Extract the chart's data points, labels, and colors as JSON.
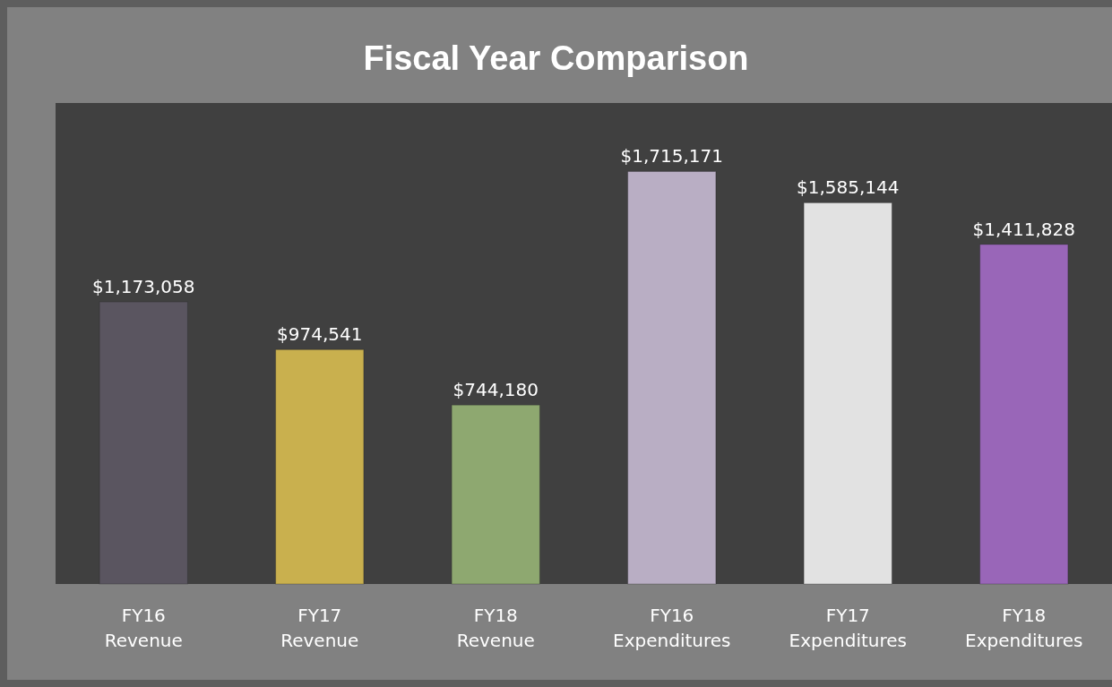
{
  "chart_data": {
    "type": "bar",
    "title": "Fiscal Year Comparison",
    "categories": [
      "FY16 Revenue",
      "FY17 Revenue",
      "FY18 Revenue",
      "FY16 Expenditures",
      "FY17 Expenditures",
      "FY18 Expenditures"
    ],
    "values": [
      1173058,
      974541,
      744180,
      1715171,
      1585144,
      1411828
    ],
    "colors": [
      "#5a5560",
      "#c9b04e",
      "#8ea870",
      "#b9aec4",
      "#e2e2e2",
      "#9966b8"
    ],
    "value_labels": [
      "$1,173,058",
      "$974,541",
      "$744,180",
      "$1,715,171",
      "$1,585,144",
      "$1,411,828"
    ],
    "ylim": [
      0,
      2000000
    ]
  }
}
